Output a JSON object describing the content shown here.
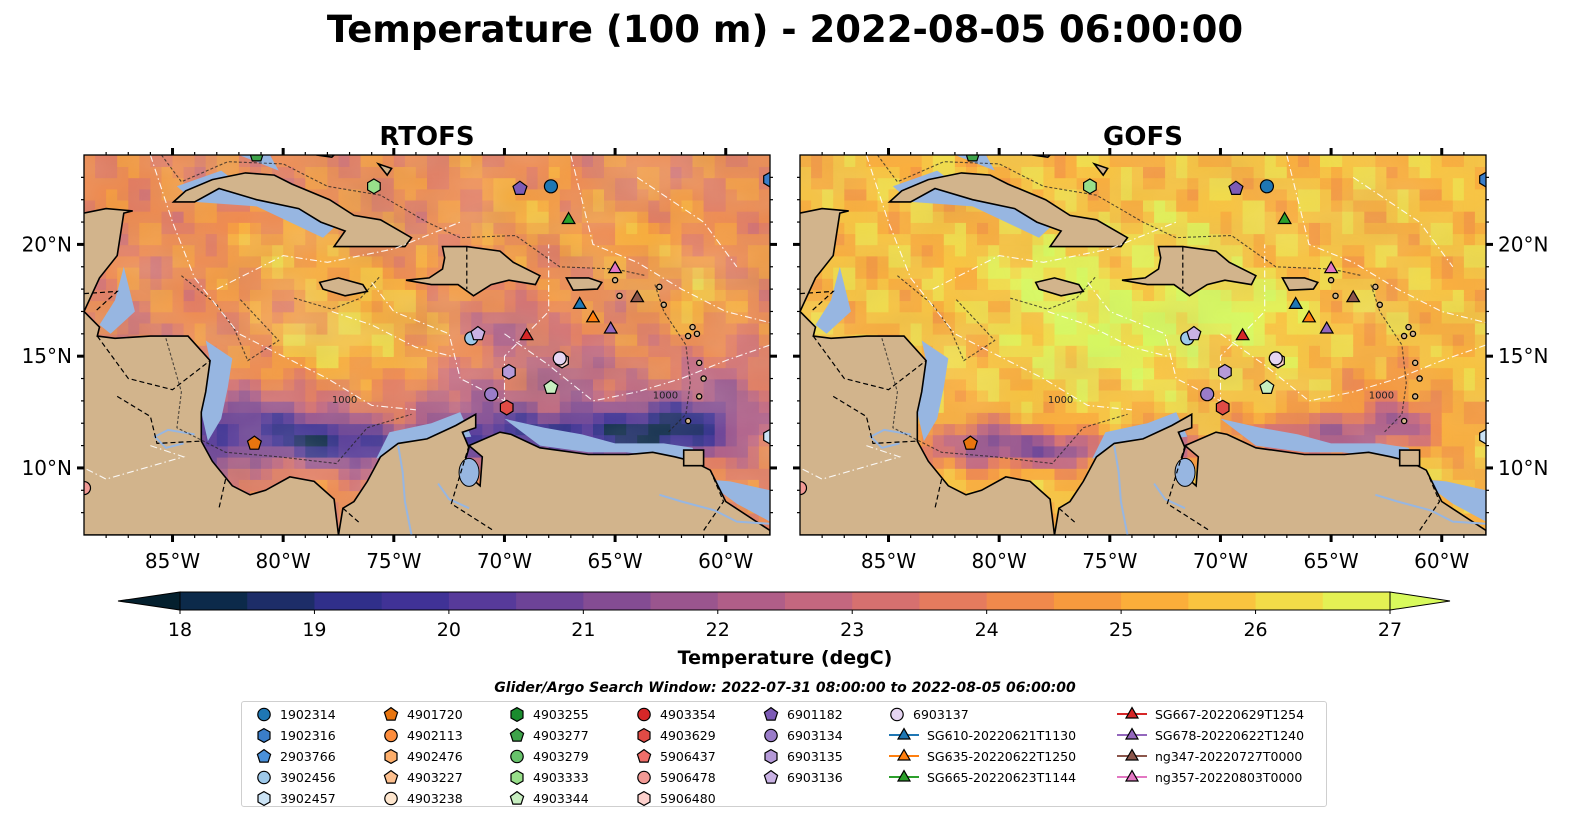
{
  "title": "Temperature (100 m) - 2022-08-05 06:00:00",
  "panels": [
    {
      "title": "RTOFS",
      "model": "rtofs"
    },
    {
      "title": "GOFS",
      "model": "gofs"
    }
  ],
  "colors": {
    "land": "#d2b48c",
    "shelf": "#97b6e1",
    "cmap": [
      "#04202e",
      "#0c2a4a",
      "#1d2d68",
      "#302f8a",
      "#403296",
      "#573a9a",
      "#6d4397",
      "#844c93",
      "#9a558e",
      "#b05e88",
      "#c4677f",
      "#d6706f",
      "#e57b5e",
      "#f0894c",
      "#f79a3e",
      "#fbae3a",
      "#f9c43f",
      "#f2dc48",
      "#e4f154",
      "#d8fa5c"
    ]
  },
  "chart_data": {
    "type": "heatmap",
    "variable": "Temperature (100 m)",
    "time": "2022-08-05 06:00:00",
    "lon_range": [
      -89,
      -58
    ],
    "lat_range": [
      7,
      24
    ],
    "x_ticks": [
      "85°W",
      "80°W",
      "75°W",
      "70°W",
      "65°W",
      "60°W"
    ],
    "x_tick_values": [
      -85,
      -80,
      -75,
      -70,
      -65,
      -60
    ],
    "y_ticks": [
      "10°N",
      "15°N",
      "20°N"
    ],
    "y_tick_values": [
      10,
      15,
      20
    ],
    "colorbar": {
      "label": "Temperature (degC)",
      "min": 18,
      "max": 27,
      "ticks": [
        "18",
        "19",
        "20",
        "21",
        "22",
        "23",
        "24",
        "25",
        "26",
        "27"
      ],
      "extend": "both"
    },
    "contour_label": "1000"
  },
  "search_window": "Glider/Argo Search Window: 2022-07-31 08:00:00 to 2022-08-05 06:00:00",
  "platforms": [
    {
      "id": "1902314",
      "marker": "circle",
      "color": "#1f77b4",
      "lon": -67.9,
      "lat": 22.6
    },
    {
      "id": "1902316",
      "marker": "hexagon",
      "color": "#3a7dc9",
      "lon": -58.0,
      "lat": 22.9
    },
    {
      "id": "2903766",
      "marker": "pentagon",
      "color": "#4a90d9",
      "lon": null,
      "lat": null
    },
    {
      "id": "3902456",
      "marker": "circle",
      "color": "#9ec9ea",
      "lon": -71.5,
      "lat": 15.8
    },
    {
      "id": "3902457",
      "marker": "hexagon",
      "color": "#cbe3f5",
      "lon": -58.0,
      "lat": 11.4
    },
    {
      "id": "4901720",
      "marker": "pentagon",
      "color": "#e8750f",
      "lon": -81.3,
      "lat": 11.1
    },
    {
      "id": "4902113",
      "marker": "circle",
      "color": "#fd8d3c",
      "lon": null,
      "lat": null
    },
    {
      "id": "4902476",
      "marker": "hexagon",
      "color": "#fdae6b",
      "lon": null,
      "lat": null
    },
    {
      "id": "4903227",
      "marker": "pentagon",
      "color": "#fdc08f",
      "lon": null,
      "lat": null
    },
    {
      "id": "4903238",
      "marker": "circle",
      "color": "#fee6ce",
      "lon": null,
      "lat": null
    },
    {
      "id": "4903255",
      "marker": "hexagon",
      "color": "#1a8c2e",
      "lon": null,
      "lat": null
    },
    {
      "id": "4903277",
      "marker": "pentagon",
      "color": "#3ea34a",
      "lon": -81.2,
      "lat": 24.0
    },
    {
      "id": "4903279",
      "marker": "circle",
      "color": "#67c26b",
      "lon": null,
      "lat": null
    },
    {
      "id": "4903333",
      "marker": "hexagon",
      "color": "#98df8a",
      "lon": -75.9,
      "lat": 22.6
    },
    {
      "id": "4903344",
      "marker": "pentagon",
      "color": "#c7eec0",
      "lon": -67.9,
      "lat": 13.6
    },
    {
      "id": "4903354",
      "marker": "circle",
      "color": "#d62728",
      "lon": null,
      "lat": null
    },
    {
      "id": "4903629",
      "marker": "hexagon",
      "color": "#e04b45",
      "lon": -69.9,
      "lat": 12.7
    },
    {
      "id": "5906437",
      "marker": "pentagon",
      "color": "#ef6e6a",
      "lon": null,
      "lat": null
    },
    {
      "id": "5906478",
      "marker": "circle",
      "color": "#f29a95",
      "lon": -89.0,
      "lat": 9.1
    },
    {
      "id": "5906480",
      "marker": "hexagon",
      "color": "#fcd0cc",
      "lon": -67.4,
      "lat": 14.8
    },
    {
      "id": "6901182",
      "marker": "pentagon",
      "color": "#7d5bb6",
      "lon": -69.3,
      "lat": 22.5
    },
    {
      "id": "6903134",
      "marker": "circle",
      "color": "#9a7cc9",
      "lon": -70.6,
      "lat": 13.3
    },
    {
      "id": "6903135",
      "marker": "hexagon",
      "color": "#b59ad8",
      "lon": -69.8,
      "lat": 14.3
    },
    {
      "id": "6903136",
      "marker": "pentagon",
      "color": "#c9b2e4",
      "lon": -71.2,
      "lat": 16.0
    },
    {
      "id": "6903137",
      "marker": "circle",
      "color": "#e6d5f2",
      "lon": -67.5,
      "lat": 14.9
    },
    {
      "id": "SG610-20220621T1130",
      "marker": "triangle",
      "color": "#1f77b4",
      "lon": -66.6,
      "lat": 17.3
    },
    {
      "id": "SG635-20220622T1250",
      "marker": "triangle",
      "color": "#ff7f0e",
      "lon": -66.0,
      "lat": 16.7
    },
    {
      "id": "SG665-20220623T1144",
      "marker": "triangle",
      "color": "#2ca02c",
      "lon": -67.1,
      "lat": 21.1
    },
    {
      "id": "SG667-20220629T1254",
      "marker": "triangle",
      "color": "#d62728",
      "lon": -69.0,
      "lat": 15.9
    },
    {
      "id": "SG678-20220622T1240",
      "marker": "triangle",
      "color": "#9467bd",
      "lon": -65.2,
      "lat": 16.2
    },
    {
      "id": "ng347-20220727T0000",
      "marker": "triangle",
      "color": "#8c564b",
      "lon": -64.0,
      "lat": 17.6
    },
    {
      "id": "ng357-20220803T0000",
      "marker": "triangle",
      "color": "#e377c2",
      "lon": -65.0,
      "lat": 18.9
    }
  ]
}
